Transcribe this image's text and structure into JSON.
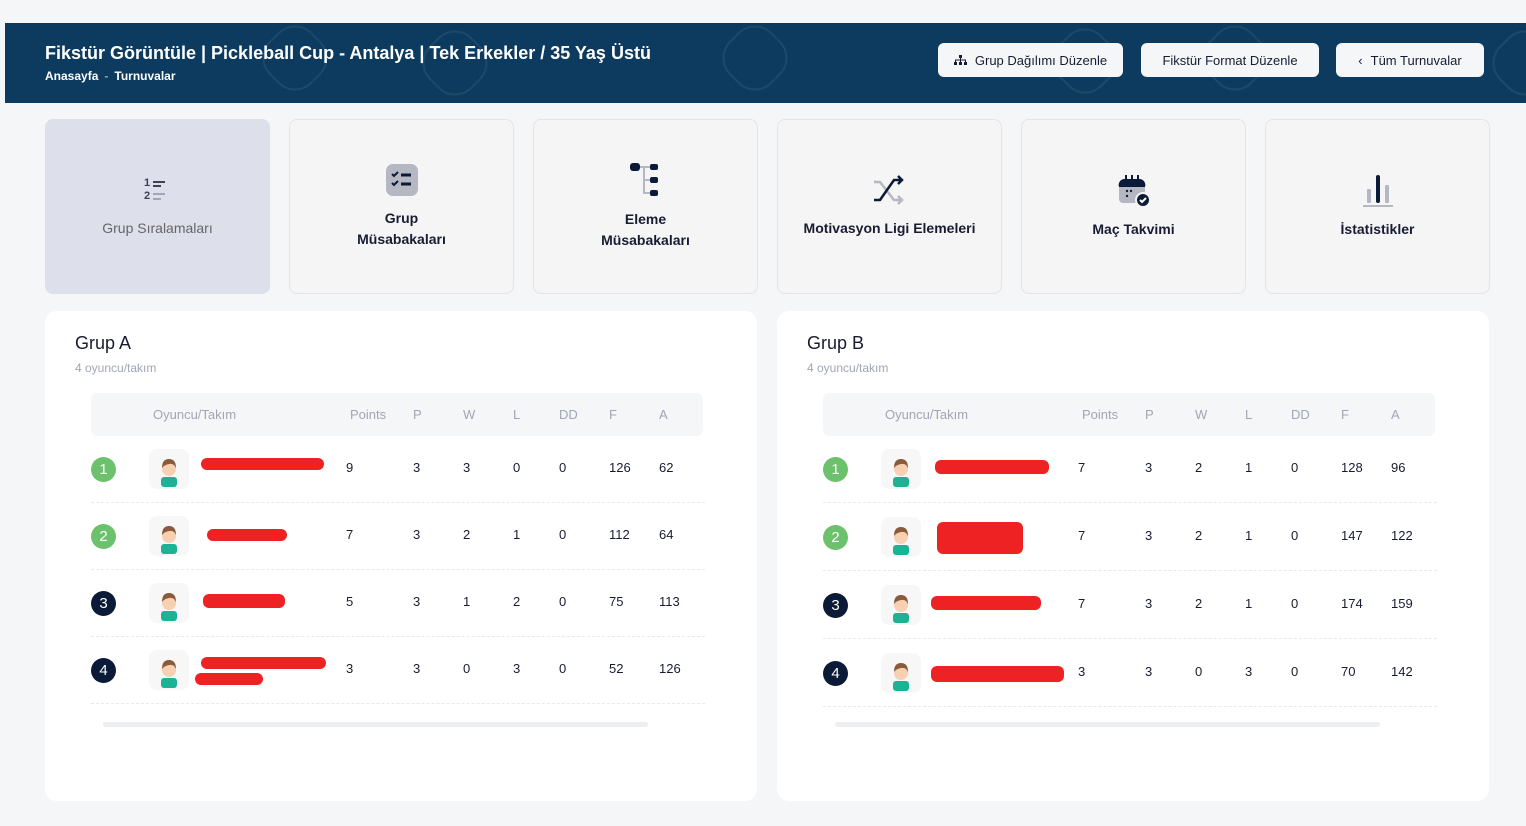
{
  "header": {
    "title": "Fikstür Görüntüle | Pickleball Cup - Antalya | Tek Erkekler / 35 Yaş Üstü",
    "breadcrumbs": [
      "Anasayfa",
      "Turnuvalar"
    ],
    "buttons": [
      {
        "label": "Grup Dağılımı Düzenle",
        "icon": "sitemap-icon"
      },
      {
        "label": "Fikstür Format Düzenle"
      },
      {
        "label": "Tüm Turnuvalar",
        "icon": "chevron-left-icon"
      }
    ]
  },
  "tiles": [
    {
      "label": "Grup Sıralamaları",
      "active": true
    },
    {
      "label": "Grup Müsabakaları"
    },
    {
      "label": "Eleme Müsabakaları"
    },
    {
      "label": "Motivasyon Ligi Elemeleri"
    },
    {
      "label": "Maç Takvimi"
    },
    {
      "label": "İstatistikler"
    }
  ],
  "columns": [
    "Oyuncu/Takım",
    "Points",
    "P",
    "W",
    "L",
    "DD",
    "F",
    "A"
  ],
  "colors": {
    "header": "#0c3b5f",
    "rank_top": "#6cc16c",
    "rank_other": "#0b1a36"
  },
  "groups": [
    {
      "title": "Grup A",
      "subtitle": "4 oyuncu/takım",
      "rows": [
        {
          "rank": "1",
          "points": "9",
          "p": "3",
          "w": "3",
          "l": "0",
          "dd": "0",
          "f": "126",
          "a": "62"
        },
        {
          "rank": "2",
          "points": "7",
          "p": "3",
          "w": "2",
          "l": "1",
          "dd": "0",
          "f": "112",
          "a": "64"
        },
        {
          "rank": "3",
          "points": "5",
          "p": "3",
          "w": "1",
          "l": "2",
          "dd": "0",
          "f": "75",
          "a": "113"
        },
        {
          "rank": "4",
          "points": "3",
          "p": "3",
          "w": "0",
          "l": "3",
          "dd": "0",
          "f": "52",
          "a": "126"
        }
      ]
    },
    {
      "title": "Grup B",
      "subtitle": "4 oyuncu/takım",
      "rows": [
        {
          "rank": "1",
          "points": "7",
          "p": "3",
          "w": "2",
          "l": "1",
          "dd": "0",
          "f": "128",
          "a": "96"
        },
        {
          "rank": "2",
          "points": "7",
          "p": "3",
          "w": "2",
          "l": "1",
          "dd": "0",
          "f": "147",
          "a": "122"
        },
        {
          "rank": "3",
          "points": "7",
          "p": "3",
          "w": "2",
          "l": "1",
          "dd": "0",
          "f": "174",
          "a": "159"
        },
        {
          "rank": "4",
          "points": "3",
          "p": "3",
          "w": "0",
          "l": "3",
          "dd": "0",
          "f": "70",
          "a": "142"
        }
      ]
    }
  ]
}
